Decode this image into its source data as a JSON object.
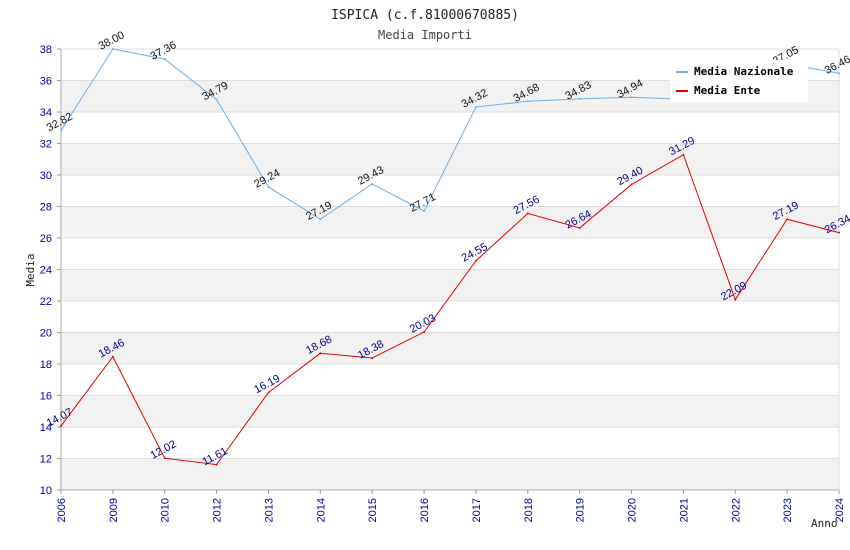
{
  "chart_data": {
    "type": "line",
    "title": "ISPICA (c.f.81000670885)",
    "subtitle": "Media Importi",
    "xlabel": "Anno",
    "ylabel": "Media",
    "ylim": [
      10,
      38
    ],
    "yticks": [
      10,
      12,
      14,
      16,
      18,
      20,
      22,
      24,
      26,
      28,
      30,
      32,
      34,
      36,
      38
    ],
    "categories": [
      "2006",
      "2009",
      "2010",
      "2012",
      "2013",
      "2014",
      "2015",
      "2016",
      "2017",
      "2018",
      "2019",
      "2020",
      "2021",
      "2022",
      "2023",
      "2024"
    ],
    "series": [
      {
        "name": "Media Nazionale",
        "color": "#6aaee6",
        "values": [
          32.82,
          38.0,
          37.36,
          34.79,
          29.24,
          27.19,
          29.43,
          27.71,
          34.32,
          34.68,
          34.83,
          34.94,
          34.8,
          34.82,
          37.05,
          36.46
        ],
        "labels": [
          "32.82",
          "38.00",
          "37.36",
          "34.79",
          "29.24",
          "27.19",
          "29.43",
          "27.71",
          "34.32",
          "34.68",
          "34.83",
          "34.94",
          "",
          "",
          "37.05",
          "36.46"
        ]
      },
      {
        "name": "Media Ente",
        "color": "#e00000",
        "values": [
          14.07,
          18.46,
          12.02,
          11.61,
          16.19,
          18.68,
          18.38,
          20.03,
          24.55,
          27.56,
          26.64,
          29.4,
          31.29,
          22.09,
          27.19,
          26.34
        ],
        "labels": [
          "14.07",
          "18.46",
          "12.02",
          "11.61",
          "16.19",
          "18.68",
          "18.38",
          "20.03",
          "24.55",
          "27.56",
          "26.64",
          "29.40",
          "31.29",
          "22.09",
          "27.19",
          "26.34"
        ]
      }
    ],
    "legend_position": "top-right",
    "grid": true
  }
}
